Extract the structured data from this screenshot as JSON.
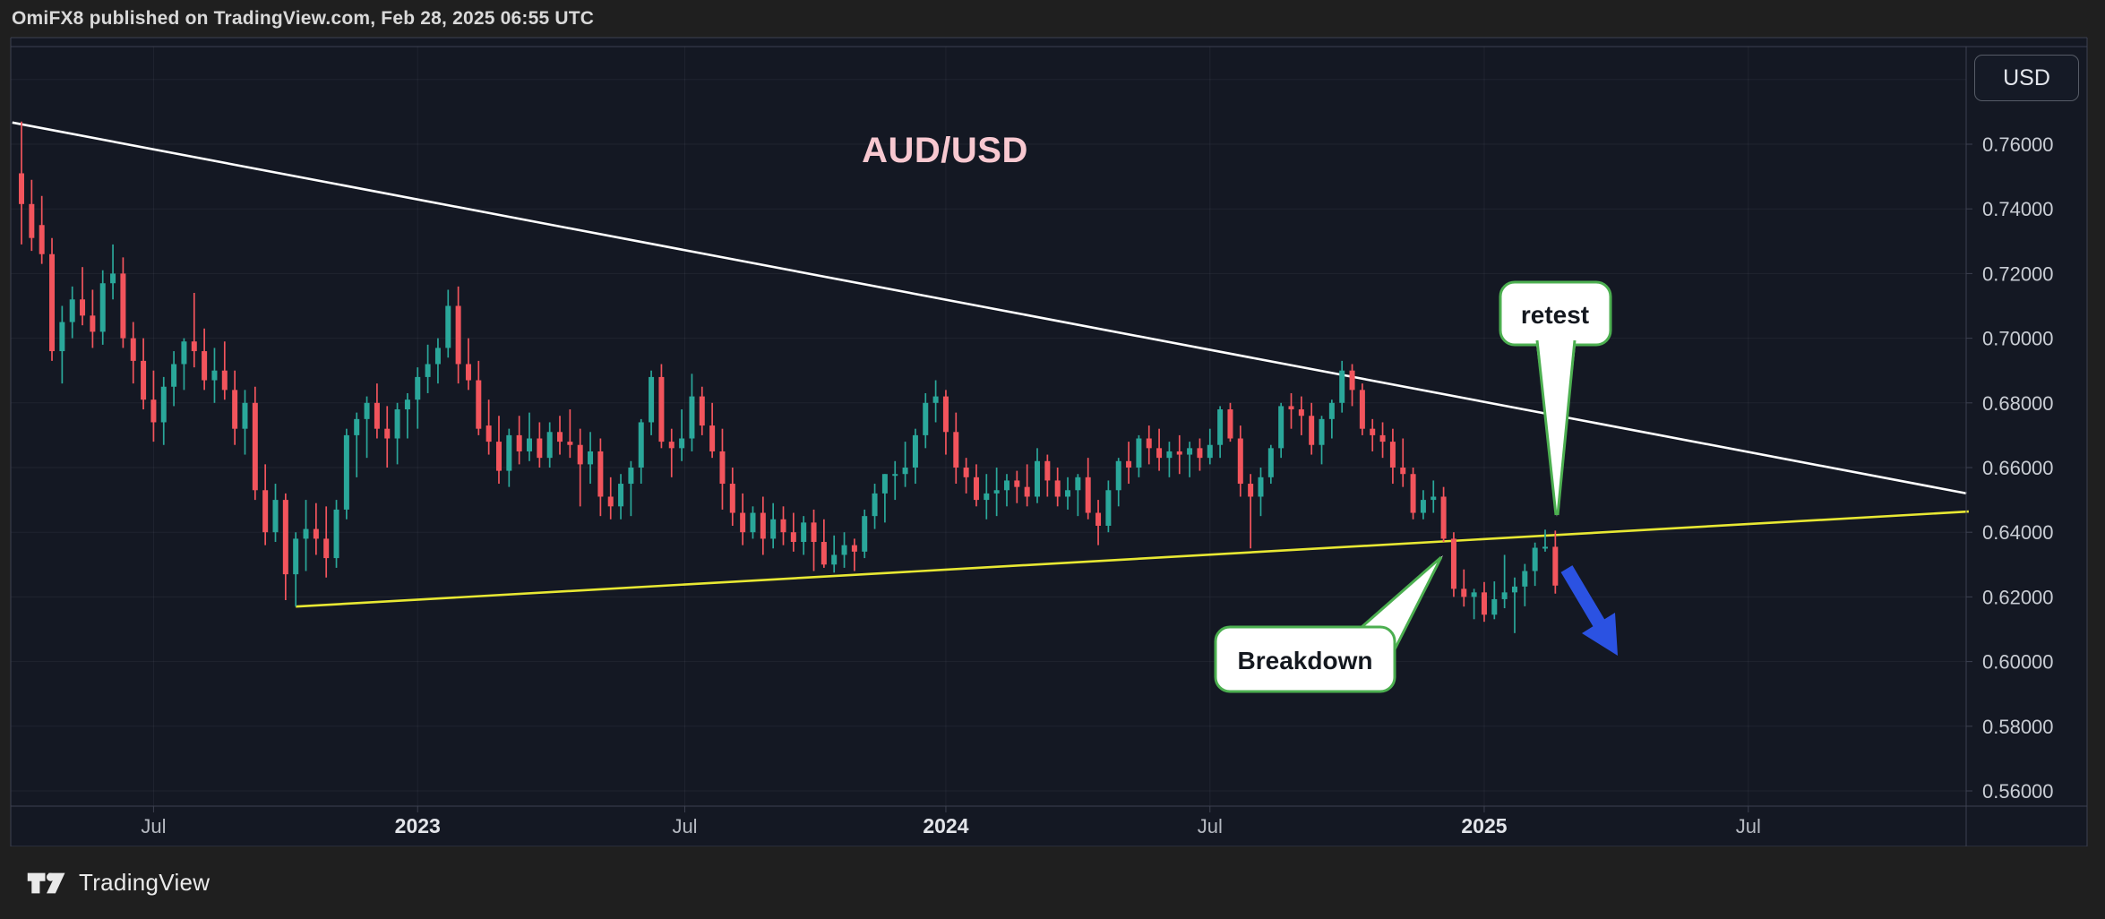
{
  "header": {
    "publish_info": "OmiFX8 published on TradingView.com, Feb 28, 2025 06:55 UTC"
  },
  "footer": {
    "brand": "TradingView"
  },
  "chart": {
    "symbol_title": "AUD/USD",
    "currency_button": "USD",
    "annotations": {
      "retest": "retest",
      "breakdown": "Breakdown"
    },
    "colors": {
      "panel_bg": "#141823",
      "chrome_bg": "#1f1f1f",
      "up": "#2aa79a",
      "down": "#f2545c",
      "resistance_line": "#ffffff",
      "support_line": "#e8e833",
      "annotation_border": "#4caf50",
      "arrow": "#2b52e2",
      "title_pink": "#f8c8d0",
      "axis_text": "#c9cdd4",
      "border": "#3d4150"
    }
  },
  "chart_data": {
    "type": "candlestick",
    "symbol": "AUD/USD",
    "quote_currency": "USD",
    "timeframe_hint": "weekly",
    "ylim": [
      0.545,
      0.79
    ],
    "grid": true,
    "price_axis_ticks": [
      {
        "value": 0.76,
        "label": "0.76000"
      },
      {
        "value": 0.74,
        "label": "0.74000"
      },
      {
        "value": 0.72,
        "label": "0.72000"
      },
      {
        "value": 0.7,
        "label": "0.70000"
      },
      {
        "value": 0.68,
        "label": "0.68000"
      },
      {
        "value": 0.66,
        "label": "0.66000"
      },
      {
        "value": 0.64,
        "label": "0.64000"
      },
      {
        "value": 0.62,
        "label": "0.62000"
      },
      {
        "value": 0.6,
        "label": "0.60000"
      },
      {
        "value": 0.58,
        "label": "0.58000"
      },
      {
        "value": 0.56,
        "label": "0.56000"
      }
    ],
    "grid_prices": [
      0.78,
      0.76,
      0.74,
      0.72,
      0.7,
      0.68,
      0.66,
      0.64,
      0.62,
      0.6,
      0.58,
      0.56
    ],
    "time_axis_ticks": [
      {
        "label": "Jul",
        "week": 13,
        "bold": false
      },
      {
        "label": "2023",
        "week": 39,
        "bold": true
      },
      {
        "label": "Jul",
        "week": 65.3,
        "bold": false
      },
      {
        "label": "2024",
        "week": 91,
        "bold": true
      },
      {
        "label": "Jul",
        "week": 117,
        "bold": false
      },
      {
        "label": "2025",
        "week": 144,
        "bold": true
      },
      {
        "label": "Jul",
        "week": 170,
        "bold": false
      }
    ],
    "trendlines": [
      {
        "name": "descending-resistance",
        "color": "#ffffff",
        "from": {
          "week": -0.9,
          "price": 0.7667
        },
        "to": {
          "week": 191.5,
          "price": 0.652
        }
      },
      {
        "name": "ascending-support",
        "color": "#e8e833",
        "from": {
          "week": 27.0,
          "price": 0.617
        },
        "to": {
          "week": 191.7,
          "price": 0.6464
        }
      }
    ],
    "annotations": [
      {
        "text": "retest",
        "points_to": {
          "week": 150,
          "price": 0.641
        }
      },
      {
        "text": "Breakdown",
        "points_to": {
          "week": 140,
          "price": 0.633
        }
      }
    ],
    "arrow": {
      "color": "#2b52e2",
      "direction": "down-right"
    },
    "candles": [
      [
        0.751,
        0.767,
        0.729,
        0.7415
      ],
      [
        0.7415,
        0.749,
        0.727,
        0.731
      ],
      [
        0.735,
        0.744,
        0.723,
        0.726
      ],
      [
        0.726,
        0.731,
        0.693,
        0.696
      ],
      [
        0.696,
        0.71,
        0.686,
        0.705
      ],
      [
        0.705,
        0.716,
        0.7,
        0.712
      ],
      [
        0.712,
        0.722,
        0.704,
        0.707
      ],
      [
        0.707,
        0.715,
        0.697,
        0.702
      ],
      [
        0.702,
        0.721,
        0.698,
        0.717
      ],
      [
        0.717,
        0.729,
        0.712,
        0.72
      ],
      [
        0.72,
        0.725,
        0.697,
        0.7
      ],
      [
        0.7,
        0.705,
        0.686,
        0.693
      ],
      [
        0.693,
        0.7,
        0.678,
        0.681
      ],
      [
        0.681,
        0.69,
        0.668,
        0.674
      ],
      [
        0.674,
        0.688,
        0.667,
        0.685
      ],
      [
        0.685,
        0.696,
        0.679,
        0.692
      ],
      [
        0.692,
        0.7,
        0.684,
        0.699
      ],
      [
        0.699,
        0.714,
        0.691,
        0.696
      ],
      [
        0.696,
        0.703,
        0.684,
        0.687
      ],
      [
        0.687,
        0.697,
        0.68,
        0.69
      ],
      [
        0.69,
        0.699,
        0.681,
        0.684
      ],
      [
        0.684,
        0.69,
        0.667,
        0.672
      ],
      [
        0.672,
        0.684,
        0.664,
        0.68
      ],
      [
        0.68,
        0.685,
        0.65,
        0.653
      ],
      [
        0.653,
        0.661,
        0.636,
        0.64
      ],
      [
        0.64,
        0.655,
        0.637,
        0.65
      ],
      [
        0.65,
        0.652,
        0.619,
        0.627
      ],
      [
        0.627,
        0.64,
        0.617,
        0.638
      ],
      [
        0.638,
        0.65,
        0.628,
        0.641
      ],
      [
        0.641,
        0.649,
        0.633,
        0.638
      ],
      [
        0.638,
        0.648,
        0.626,
        0.632
      ],
      [
        0.632,
        0.65,
        0.629,
        0.647
      ],
      [
        0.647,
        0.672,
        0.644,
        0.67
      ],
      [
        0.67,
        0.677,
        0.657,
        0.675
      ],
      [
        0.675,
        0.682,
        0.663,
        0.68
      ],
      [
        0.68,
        0.686,
        0.669,
        0.672
      ],
      [
        0.672,
        0.679,
        0.66,
        0.669
      ],
      [
        0.669,
        0.68,
        0.661,
        0.678
      ],
      [
        0.678,
        0.683,
        0.669,
        0.681
      ],
      [
        0.681,
        0.691,
        0.672,
        0.688
      ],
      [
        0.688,
        0.698,
        0.683,
        0.692
      ],
      [
        0.692,
        0.7,
        0.686,
        0.697
      ],
      [
        0.697,
        0.715,
        0.694,
        0.71
      ],
      [
        0.71,
        0.716,
        0.686,
        0.692
      ],
      [
        0.692,
        0.7,
        0.684,
        0.687
      ],
      [
        0.687,
        0.693,
        0.67,
        0.672
      ],
      [
        0.673,
        0.681,
        0.664,
        0.668
      ],
      [
        0.668,
        0.676,
        0.655,
        0.659
      ],
      [
        0.659,
        0.672,
        0.654,
        0.67
      ],
      [
        0.67,
        0.676,
        0.661,
        0.665
      ],
      [
        0.665,
        0.677,
        0.662,
        0.669
      ],
      [
        0.669,
        0.674,
        0.66,
        0.663
      ],
      [
        0.663,
        0.674,
        0.66,
        0.671
      ],
      [
        0.671,
        0.676,
        0.664,
        0.668
      ],
      [
        0.668,
        0.678,
        0.663,
        0.667
      ],
      [
        0.667,
        0.672,
        0.648,
        0.661
      ],
      [
        0.661,
        0.671,
        0.655,
        0.665
      ],
      [
        0.665,
        0.669,
        0.645,
        0.651
      ],
      [
        0.651,
        0.657,
        0.644,
        0.648
      ],
      [
        0.648,
        0.658,
        0.644,
        0.655
      ],
      [
        0.655,
        0.662,
        0.645,
        0.66
      ],
      [
        0.66,
        0.675,
        0.655,
        0.674
      ],
      [
        0.674,
        0.69,
        0.67,
        0.688
      ],
      [
        0.688,
        0.692,
        0.666,
        0.668
      ],
      [
        0.668,
        0.672,
        0.657,
        0.666
      ],
      [
        0.666,
        0.678,
        0.662,
        0.669
      ],
      [
        0.669,
        0.689,
        0.665,
        0.682
      ],
      [
        0.682,
        0.685,
        0.67,
        0.673
      ],
      [
        0.673,
        0.68,
        0.663,
        0.665
      ],
      [
        0.665,
        0.672,
        0.647,
        0.655
      ],
      [
        0.655,
        0.66,
        0.642,
        0.646
      ],
      [
        0.646,
        0.652,
        0.636,
        0.64
      ],
      [
        0.64,
        0.648,
        0.638,
        0.646
      ],
      [
        0.646,
        0.651,
        0.633,
        0.638
      ],
      [
        0.638,
        0.649,
        0.635,
        0.644
      ],
      [
        0.644,
        0.648,
        0.636,
        0.64
      ],
      [
        0.64,
        0.646,
        0.634,
        0.637
      ],
      [
        0.637,
        0.645,
        0.633,
        0.643
      ],
      [
        0.643,
        0.647,
        0.628,
        0.637
      ],
      [
        0.637,
        0.644,
        0.629,
        0.63
      ],
      [
        0.63,
        0.639,
        0.6275,
        0.633
      ],
      [
        0.633,
        0.64,
        0.629,
        0.636
      ],
      [
        0.636,
        0.638,
        0.628,
        0.634
      ],
      [
        0.634,
        0.647,
        0.632,
        0.645
      ],
      [
        0.645,
        0.655,
        0.641,
        0.652
      ],
      [
        0.652,
        0.658,
        0.643,
        0.658
      ],
      [
        0.658,
        0.662,
        0.65,
        0.658
      ],
      [
        0.658,
        0.668,
        0.654,
        0.66
      ],
      [
        0.66,
        0.672,
        0.655,
        0.67
      ],
      [
        0.67,
        0.683,
        0.666,
        0.68
      ],
      [
        0.68,
        0.687,
        0.674,
        0.682
      ],
      [
        0.682,
        0.684,
        0.664,
        0.671
      ],
      [
        0.671,
        0.677,
        0.655,
        0.66
      ],
      [
        0.66,
        0.663,
        0.652,
        0.657
      ],
      [
        0.657,
        0.661,
        0.648,
        0.65
      ],
      [
        0.65,
        0.658,
        0.644,
        0.652
      ],
      [
        0.652,
        0.66,
        0.645,
        0.653
      ],
      [
        0.653,
        0.658,
        0.648,
        0.656
      ],
      [
        0.656,
        0.659,
        0.649,
        0.654
      ],
      [
        0.654,
        0.661,
        0.648,
        0.651
      ],
      [
        0.651,
        0.666,
        0.649,
        0.662
      ],
      [
        0.662,
        0.664,
        0.651,
        0.656
      ],
      [
        0.656,
        0.66,
        0.648,
        0.651
      ],
      [
        0.651,
        0.657,
        0.647,
        0.653
      ],
      [
        0.653,
        0.658,
        0.645,
        0.657
      ],
      [
        0.657,
        0.663,
        0.644,
        0.646
      ],
      [
        0.646,
        0.65,
        0.636,
        0.642
      ],
      [
        0.642,
        0.656,
        0.64,
        0.653
      ],
      [
        0.653,
        0.663,
        0.648,
        0.662
      ],
      [
        0.662,
        0.668,
        0.655,
        0.66
      ],
      [
        0.66,
        0.67,
        0.657,
        0.669
      ],
      [
        0.669,
        0.673,
        0.661,
        0.666
      ],
      [
        0.666,
        0.672,
        0.659,
        0.663
      ],
      [
        0.663,
        0.668,
        0.657,
        0.665
      ],
      [
        0.665,
        0.67,
        0.658,
        0.664
      ],
      [
        0.664,
        0.668,
        0.657,
        0.666
      ],
      [
        0.666,
        0.669,
        0.659,
        0.663
      ],
      [
        0.663,
        0.672,
        0.661,
        0.667
      ],
      [
        0.667,
        0.679,
        0.663,
        0.678
      ],
      [
        0.678,
        0.68,
        0.668,
        0.669
      ],
      [
        0.669,
        0.673,
        0.651,
        0.655
      ],
      [
        0.655,
        0.658,
        0.635,
        0.651
      ],
      [
        0.651,
        0.66,
        0.645,
        0.657
      ],
      [
        0.657,
        0.667,
        0.655,
        0.666
      ],
      [
        0.666,
        0.68,
        0.663,
        0.679
      ],
      [
        0.679,
        0.683,
        0.672,
        0.678
      ],
      [
        0.678,
        0.682,
        0.67,
        0.676
      ],
      [
        0.676,
        0.68,
        0.664,
        0.667
      ],
      [
        0.667,
        0.676,
        0.661,
        0.675
      ],
      [
        0.675,
        0.681,
        0.669,
        0.68
      ],
      [
        0.68,
        0.693,
        0.677,
        0.69
      ],
      [
        0.69,
        0.692,
        0.679,
        0.684
      ],
      [
        0.684,
        0.686,
        0.67,
        0.672
      ],
      [
        0.672,
        0.675,
        0.665,
        0.67
      ],
      [
        0.67,
        0.674,
        0.663,
        0.668
      ],
      [
        0.668,
        0.672,
        0.655,
        0.66
      ],
      [
        0.66,
        0.669,
        0.654,
        0.658
      ],
      [
        0.658,
        0.66,
        0.644,
        0.646
      ],
      [
        0.646,
        0.653,
        0.644,
        0.65
      ],
      [
        0.65,
        0.656,
        0.646,
        0.651
      ],
      [
        0.651,
        0.654,
        0.637,
        0.638
      ],
      [
        0.638,
        0.64,
        0.62,
        0.6225
      ],
      [
        0.6225,
        0.6285,
        0.617,
        0.62
      ],
      [
        0.62,
        0.6225,
        0.6131,
        0.6214
      ],
      [
        0.6214,
        0.6246,
        0.6123,
        0.6145
      ],
      [
        0.6145,
        0.6248,
        0.6131,
        0.6193
      ],
      [
        0.6193,
        0.633,
        0.6165,
        0.6214
      ],
      [
        0.6214,
        0.626,
        0.6088,
        0.6232
      ],
      [
        0.6232,
        0.6302,
        0.6171,
        0.628
      ],
      [
        0.628,
        0.6368,
        0.6234,
        0.6352
      ],
      [
        0.6352,
        0.6408,
        0.634,
        0.6355
      ],
      [
        0.6355,
        0.6405,
        0.621,
        0.6235
      ]
    ]
  }
}
